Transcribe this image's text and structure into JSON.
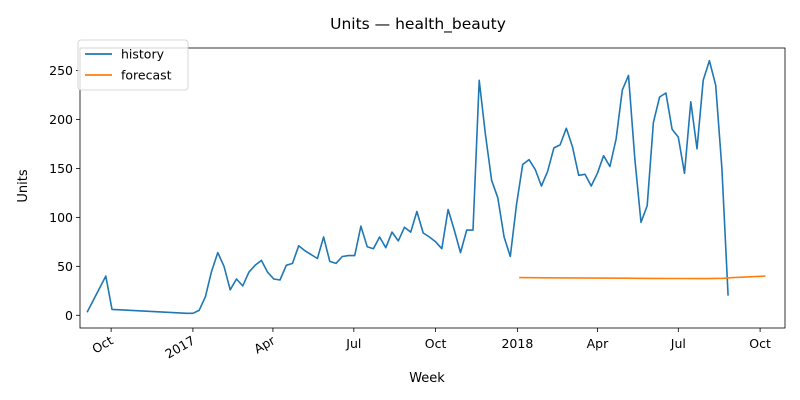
{
  "chart_data": {
    "type": "line",
    "title": "Units — health_beauty",
    "xlabel": "Week",
    "ylabel": "Units",
    "ylim": [
      -13,
      273
    ],
    "xlim": [
      "2016-08-27",
      "2018-10-29"
    ],
    "grid": false,
    "legend_position": "top-left",
    "x_ticks": [
      {
        "date": "2016-10-01",
        "label": "Oct",
        "rotated": true
      },
      {
        "date": "2017-01-01",
        "label": "2017",
        "rotated": true
      },
      {
        "date": "2017-04-01",
        "label": "Apr",
        "rotated": true
      },
      {
        "date": "2017-07-01",
        "label": "Jul",
        "rotated": false
      },
      {
        "date": "2017-10-01",
        "label": "Oct",
        "rotated": false
      },
      {
        "date": "2018-01-01",
        "label": "2018",
        "rotated": false
      },
      {
        "date": "2018-04-01",
        "label": "Apr",
        "rotated": false
      },
      {
        "date": "2018-07-01",
        "label": "Jul",
        "rotated": false
      },
      {
        "date": "2018-10-01",
        "label": "Oct",
        "rotated": false
      }
    ],
    "y_ticks": [
      0,
      50,
      100,
      150,
      200,
      250
    ],
    "series": [
      {
        "name": "history",
        "color": "#1f77b4",
        "points": [
          [
            "2016-09-04",
            3
          ],
          [
            "2016-09-25",
            40
          ],
          [
            "2016-10-02",
            6
          ],
          [
            "2016-12-25",
            2
          ],
          [
            "2017-01-01",
            2
          ],
          [
            "2017-01-08",
            5
          ],
          [
            "2017-01-15",
            19
          ],
          [
            "2017-01-22",
            45
          ],
          [
            "2017-01-29",
            64
          ],
          [
            "2017-02-05",
            50
          ],
          [
            "2017-02-12",
            26
          ],
          [
            "2017-02-19",
            37
          ],
          [
            "2017-02-26",
            30
          ],
          [
            "2017-03-05",
            44
          ],
          [
            "2017-03-12",
            51
          ],
          [
            "2017-03-19",
            56
          ],
          [
            "2017-03-26",
            44
          ],
          [
            "2017-04-02",
            37
          ],
          [
            "2017-04-09",
            36
          ],
          [
            "2017-04-16",
            51
          ],
          [
            "2017-04-23",
            53
          ],
          [
            "2017-04-30",
            71
          ],
          [
            "2017-05-07",
            66
          ],
          [
            "2017-05-14",
            62
          ],
          [
            "2017-05-21",
            58
          ],
          [
            "2017-05-28",
            80
          ],
          [
            "2017-06-04",
            55
          ],
          [
            "2017-06-11",
            53
          ],
          [
            "2017-06-18",
            60
          ],
          [
            "2017-06-25",
            61
          ],
          [
            "2017-07-02",
            61
          ],
          [
            "2017-07-09",
            91
          ],
          [
            "2017-07-16",
            70
          ],
          [
            "2017-07-23",
            68
          ],
          [
            "2017-07-30",
            80
          ],
          [
            "2017-08-06",
            69
          ],
          [
            "2017-08-13",
            85
          ],
          [
            "2017-08-20",
            76
          ],
          [
            "2017-08-27",
            90
          ],
          [
            "2017-09-03",
            85
          ],
          [
            "2017-09-10",
            106
          ],
          [
            "2017-09-17",
            84
          ],
          [
            "2017-09-24",
            80
          ],
          [
            "2017-10-01",
            75
          ],
          [
            "2017-10-08",
            68
          ],
          [
            "2017-10-15",
            108
          ],
          [
            "2017-10-22",
            87
          ],
          [
            "2017-10-29",
            64
          ],
          [
            "2017-11-05",
            87
          ],
          [
            "2017-11-12",
            87
          ],
          [
            "2017-11-19",
            240
          ],
          [
            "2017-11-26",
            185
          ],
          [
            "2017-12-03",
            138
          ],
          [
            "2017-12-10",
            120
          ],
          [
            "2017-12-17",
            80
          ],
          [
            "2017-12-24",
            60
          ],
          [
            "2017-12-31",
            113
          ],
          [
            "2018-01-07",
            154
          ],
          [
            "2018-01-14",
            159
          ],
          [
            "2018-01-21",
            149
          ],
          [
            "2018-01-28",
            132
          ],
          [
            "2018-02-04",
            147
          ],
          [
            "2018-02-11",
            171
          ],
          [
            "2018-02-18",
            174
          ],
          [
            "2018-02-25",
            191
          ],
          [
            "2018-03-04",
            172
          ],
          [
            "2018-03-11",
            143
          ],
          [
            "2018-03-18",
            144
          ],
          [
            "2018-03-25",
            132
          ],
          [
            "2018-04-01",
            145
          ],
          [
            "2018-04-08",
            163
          ],
          [
            "2018-04-15",
            152
          ],
          [
            "2018-04-22",
            180
          ],
          [
            "2018-04-29",
            230
          ],
          [
            "2018-05-06",
            245
          ],
          [
            "2018-05-13",
            160
          ],
          [
            "2018-05-20",
            95
          ],
          [
            "2018-05-27",
            112
          ],
          [
            "2018-06-03",
            197
          ],
          [
            "2018-06-10",
            223
          ],
          [
            "2018-06-17",
            227
          ],
          [
            "2018-06-24",
            190
          ],
          [
            "2018-07-01",
            182
          ],
          [
            "2018-07-08",
            145
          ],
          [
            "2018-07-15",
            218
          ],
          [
            "2018-07-22",
            170
          ],
          [
            "2018-07-29",
            240
          ],
          [
            "2018-08-05",
            260
          ],
          [
            "2018-08-12",
            235
          ],
          [
            "2018-08-19",
            150
          ],
          [
            "2018-08-26",
            20
          ]
        ]
      },
      {
        "name": "forecast",
        "color": "#ff7f0e",
        "points": [
          [
            "2018-01-03",
            38.5
          ],
          [
            "2018-02-01",
            38.3
          ],
          [
            "2018-03-01",
            38.2
          ],
          [
            "2018-04-01",
            38.0
          ],
          [
            "2018-05-01",
            37.9
          ],
          [
            "2018-06-01",
            37.7
          ],
          [
            "2018-07-01",
            37.6
          ],
          [
            "2018-08-01",
            37.5
          ],
          [
            "2018-08-20",
            37.8
          ],
          [
            "2018-09-01",
            38.5
          ],
          [
            "2018-10-07",
            40.0
          ]
        ]
      }
    ]
  }
}
